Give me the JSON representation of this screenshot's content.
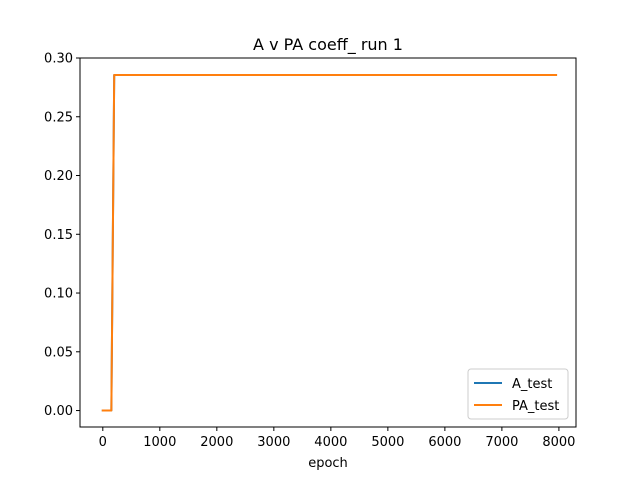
{
  "chart_data": {
    "type": "line",
    "title": "A v PA coeff_ run 1",
    "xlabel": "epoch",
    "ylabel": "",
    "xlim": [
      -400,
      8300
    ],
    "ylim": [
      -0.014,
      0.3
    ],
    "xticks": [
      0,
      1000,
      2000,
      3000,
      4000,
      5000,
      6000,
      7000,
      8000
    ],
    "xtick_labels": [
      "0",
      "1000",
      "2000",
      "3000",
      "4000",
      "5000",
      "6000",
      "7000",
      "8000"
    ],
    "yticks": [
      0.0,
      0.05,
      0.1,
      0.15,
      0.2,
      0.25,
      0.3
    ],
    "ytick_labels": [
      "0.00",
      "0.05",
      "0.10",
      "0.15",
      "0.20",
      "0.25",
      "0.30"
    ],
    "grid": false,
    "legend_position": "lower-right",
    "series": [
      {
        "name": "A_test",
        "color": "#1f77b4",
        "x": [
          0,
          150,
          200,
          7950
        ],
        "y": [
          0.0,
          0.0,
          0.2855,
          0.2855
        ]
      },
      {
        "name": "PA_test",
        "color": "#ff7f0e",
        "x": [
          0,
          150,
          200,
          7950
        ],
        "y": [
          0.0,
          0.0,
          0.2855,
          0.2855
        ]
      }
    ]
  }
}
